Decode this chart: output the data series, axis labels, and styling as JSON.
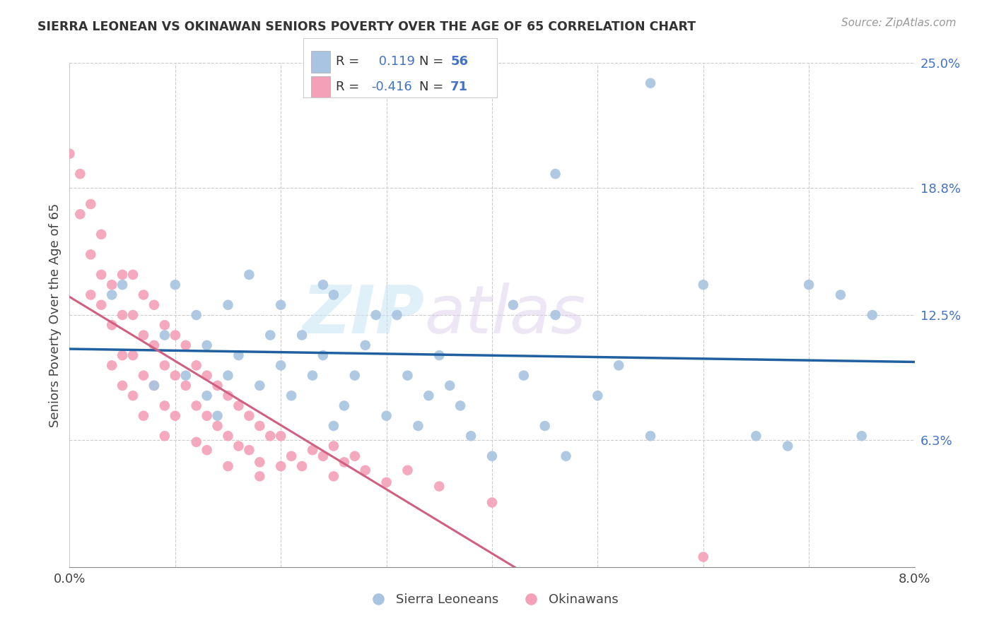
{
  "title": "SIERRA LEONEAN VS OKINAWAN SENIORS POVERTY OVER THE AGE OF 65 CORRELATION CHART",
  "source": "Source: ZipAtlas.com",
  "ylabel": "Seniors Poverty Over the Age of 65",
  "xlim": [
    0.0,
    0.08
  ],
  "ylim": [
    0.0,
    0.25
  ],
  "ytick_labels_right": [
    "25.0%",
    "18.8%",
    "12.5%",
    "6.3%"
  ],
  "ytick_vals_right": [
    0.25,
    0.188,
    0.125,
    0.063
  ],
  "sl_color": "#a8c4e0",
  "sl_line_color": "#2060a0",
  "ok_color": "#f4a0b8",
  "ok_line_color": "#d06080",
  "sl_R": 0.119,
  "sl_N": 56,
  "ok_R": -0.416,
  "ok_N": 71,
  "legend_labels": [
    "Sierra Leoneans",
    "Okinawans"
  ],
  "legend_text_color": "#4472c4",
  "watermark_zip": "ZIP",
  "watermark_atlas": "atlas",
  "sierra_leonean_x": [
    0.004,
    0.005,
    0.008,
    0.009,
    0.01,
    0.011,
    0.012,
    0.013,
    0.013,
    0.014,
    0.015,
    0.015,
    0.016,
    0.017,
    0.018,
    0.019,
    0.02,
    0.02,
    0.021,
    0.022,
    0.023,
    0.024,
    0.024,
    0.025,
    0.025,
    0.026,
    0.027,
    0.028,
    0.029,
    0.03,
    0.031,
    0.032,
    0.033,
    0.034,
    0.035,
    0.036,
    0.037,
    0.038,
    0.04,
    0.042,
    0.043,
    0.045,
    0.046,
    0.047,
    0.05,
    0.052,
    0.055,
    0.06,
    0.065,
    0.068,
    0.07,
    0.073,
    0.075,
    0.076,
    0.055,
    0.046
  ],
  "sierra_leonean_y": [
    0.135,
    0.14,
    0.09,
    0.115,
    0.14,
    0.095,
    0.125,
    0.085,
    0.11,
    0.075,
    0.13,
    0.095,
    0.105,
    0.145,
    0.09,
    0.115,
    0.1,
    0.13,
    0.085,
    0.115,
    0.095,
    0.14,
    0.105,
    0.07,
    0.135,
    0.08,
    0.095,
    0.11,
    0.125,
    0.075,
    0.125,
    0.095,
    0.07,
    0.085,
    0.105,
    0.09,
    0.08,
    0.065,
    0.055,
    0.13,
    0.095,
    0.07,
    0.125,
    0.055,
    0.085,
    0.1,
    0.065,
    0.14,
    0.065,
    0.06,
    0.14,
    0.135,
    0.065,
    0.125,
    0.24,
    0.195
  ],
  "okinawan_x": [
    0.0,
    0.001,
    0.001,
    0.002,
    0.002,
    0.002,
    0.003,
    0.003,
    0.003,
    0.004,
    0.004,
    0.004,
    0.005,
    0.005,
    0.005,
    0.005,
    0.006,
    0.006,
    0.006,
    0.006,
    0.007,
    0.007,
    0.007,
    0.007,
    0.008,
    0.008,
    0.008,
    0.009,
    0.009,
    0.009,
    0.009,
    0.01,
    0.01,
    0.01,
    0.011,
    0.011,
    0.012,
    0.012,
    0.012,
    0.013,
    0.013,
    0.013,
    0.014,
    0.014,
    0.015,
    0.015,
    0.015,
    0.016,
    0.016,
    0.017,
    0.017,
    0.018,
    0.018,
    0.018,
    0.019,
    0.02,
    0.02,
    0.021,
    0.022,
    0.023,
    0.024,
    0.025,
    0.025,
    0.026,
    0.027,
    0.028,
    0.03,
    0.032,
    0.035,
    0.04,
    0.06
  ],
  "okinawan_y": [
    0.205,
    0.175,
    0.195,
    0.155,
    0.135,
    0.18,
    0.145,
    0.165,
    0.13,
    0.14,
    0.12,
    0.1,
    0.145,
    0.125,
    0.105,
    0.09,
    0.145,
    0.125,
    0.105,
    0.085,
    0.135,
    0.115,
    0.095,
    0.075,
    0.13,
    0.11,
    0.09,
    0.12,
    0.1,
    0.08,
    0.065,
    0.115,
    0.095,
    0.075,
    0.11,
    0.09,
    0.1,
    0.08,
    0.062,
    0.095,
    0.075,
    0.058,
    0.09,
    0.07,
    0.085,
    0.065,
    0.05,
    0.08,
    0.06,
    0.075,
    0.058,
    0.07,
    0.052,
    0.045,
    0.065,
    0.065,
    0.05,
    0.055,
    0.05,
    0.058,
    0.055,
    0.06,
    0.045,
    0.052,
    0.055,
    0.048,
    0.042,
    0.048,
    0.04,
    0.032,
    0.005
  ]
}
